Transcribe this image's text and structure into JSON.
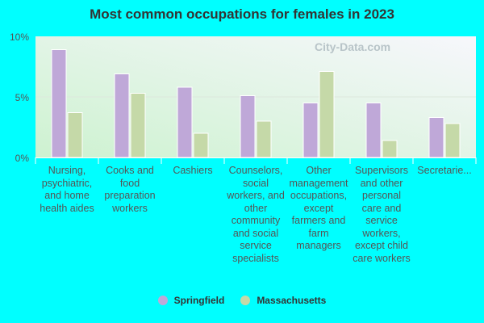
{
  "title": "Most common occupations for females in 2023",
  "watermark": "City-Data.com",
  "chart_data": {
    "type": "bar",
    "title": "Most common occupations for females in 2023",
    "categories": [
      "Nursing, psychiatric, and home health aides",
      "Cooks and food preparation workers",
      "Cashiers",
      "Counselors, social workers, and other community and social service specialists",
      "Other management occupations, except farmers and farm managers",
      "Supervisors and other personal care and service workers, except child care workers",
      "Secretarie..."
    ],
    "series": [
      {
        "name": "Springfield",
        "color": "#bfa8d8",
        "values": [
          8.9,
          6.9,
          5.8,
          5.1,
          4.5,
          4.5,
          3.3
        ]
      },
      {
        "name": "Massachusetts",
        "color": "#c5d9a8",
        "values": [
          3.7,
          5.3,
          2.0,
          3.0,
          7.1,
          1.4,
          2.8
        ]
      }
    ],
    "yticks": [
      "0%",
      "5%",
      "10%"
    ],
    "ylim": [
      0,
      10
    ],
    "legend": "bottom"
  }
}
